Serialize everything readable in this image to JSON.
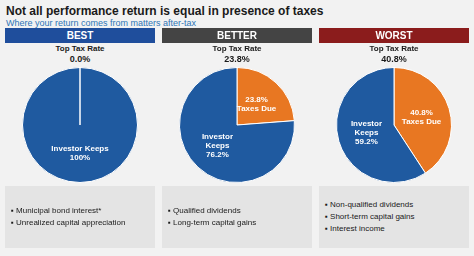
{
  "title": "Not all performance return is equal in presence of taxes",
  "subtitle": "Where your return comes from matters after-tax",
  "chart_data": [
    {
      "type": "pie",
      "title": "BEST",
      "color": "#1f4e9c",
      "annotations": [
        "Top Tax Rate",
        "0.0%"
      ],
      "values": [
        100.0
      ],
      "value_labels": [
        "Investor Keeps\n100%"
      ],
      "colors": [
        "#1f5aa0"
      ],
      "data_labels": true,
      "notes": [
        "▪ Municipal bond interest*",
        "▪ Unrealized capital appreciation"
      ]
    },
    {
      "type": "pie",
      "title": "BETTER",
      "color": "#444444",
      "annotations": [
        "Top Tax Rate",
        "23.8%"
      ],
      "values": [
        23.8,
        76.2
      ],
      "value_labels": [
        "23.8%\nTaxes Due",
        "Investor\nKeeps\n76.2%"
      ],
      "colors": [
        "#e87722",
        "#1f5aa0"
      ],
      "data_labels": true,
      "notes": [
        "▪ Qualified dividends",
        "▪ Long-term capital gains"
      ]
    },
    {
      "type": "pie",
      "title": "WORST",
      "color": "#8b1c1c",
      "annotations": [
        "Top Tax Rate",
        "40.8%"
      ],
      "values": [
        40.8,
        59.2
      ],
      "value_labels": [
        "40.8%\nTaxes Due",
        "Investor\nKeeps\n59.2%"
      ],
      "colors": [
        "#e87722",
        "#1f5aa0"
      ],
      "data_labels": true,
      "notes": [
        "▪ Non-qualified dividends",
        "▪ Short-term capital gains",
        "▪ Interest income"
      ]
    }
  ]
}
